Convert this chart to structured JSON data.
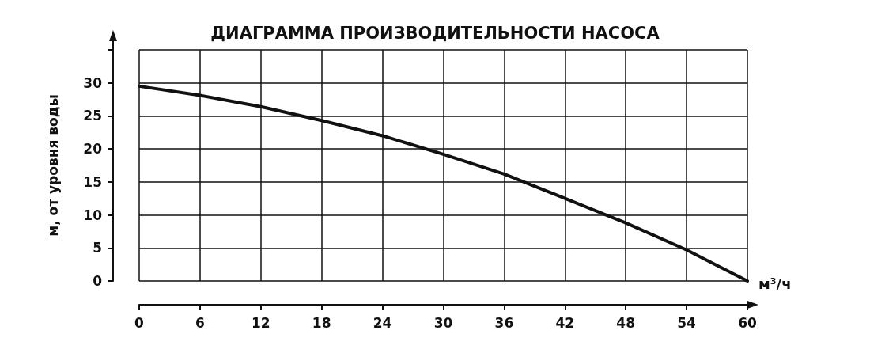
{
  "chart_data": {
    "type": "line",
    "title": "ДИАГРАММА ПРОИЗВОДИТЕЛЬНОСТИ НАСОСА",
    "xlabel": "м³/ч",
    "ylabel": "м, от уровня воды",
    "x": [
      0,
      6,
      12,
      18,
      24,
      30,
      36,
      42,
      48,
      54,
      60
    ],
    "series": [
      {
        "color": "#111111",
        "values": [
          29.5,
          28.1,
          26.4,
          24.3,
          22.0,
          19.2,
          16.2,
          12.5,
          8.8,
          4.7,
          0
        ]
      }
    ],
    "xlim": [
      0,
      60
    ],
    "xticks": [
      0,
      6,
      12,
      18,
      24,
      30,
      36,
      42,
      48,
      54,
      60
    ],
    "ylim": [
      0,
      35
    ],
    "yticks": [
      0,
      5,
      10,
      15,
      20,
      25,
      30,
      {
        "value": 35,
        "label": null
      }
    ],
    "grid": true,
    "marker": "none",
    "line_style": "solid"
  }
}
